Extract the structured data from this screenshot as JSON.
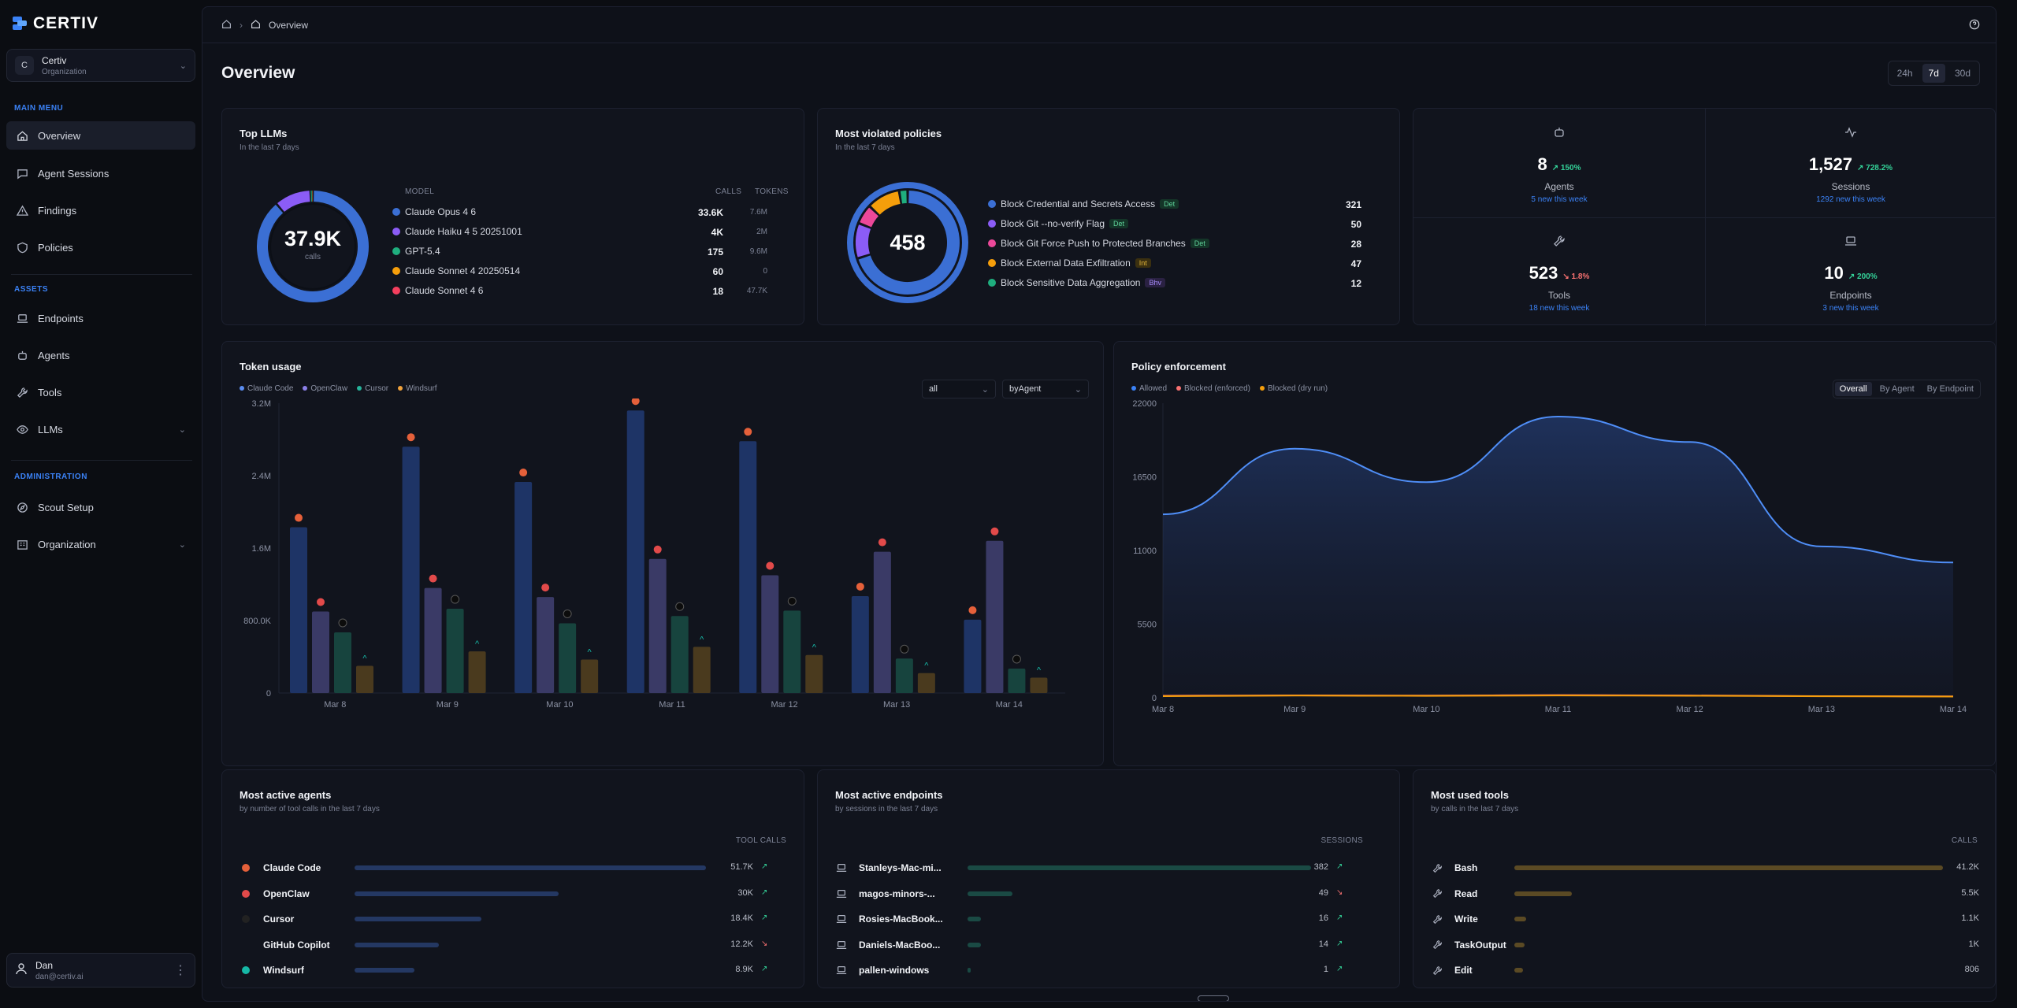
{
  "brand": {
    "name": "CERTIV"
  },
  "org": {
    "avatar": "C",
    "name": "Certiv",
    "type": "Organization"
  },
  "sidebar": {
    "main_menu_label": "MAIN MENU",
    "assets_label": "ASSETS",
    "admin_label": "ADMINISTRATION",
    "items": [
      {
        "label": "Overview",
        "icon": "home-icon"
      },
      {
        "label": "Agent Sessions",
        "icon": "message-icon"
      },
      {
        "label": "Findings",
        "icon": "warning-icon"
      },
      {
        "label": "Policies",
        "icon": "shield-icon"
      },
      {
        "label": "Endpoints",
        "icon": "laptop-icon"
      },
      {
        "label": "Agents",
        "icon": "robot-icon"
      },
      {
        "label": "Tools",
        "icon": "wrench-icon"
      },
      {
        "label": "LLMs",
        "icon": "eye-icon"
      },
      {
        "label": "Scout Setup",
        "icon": "compass-icon"
      },
      {
        "label": "Organization",
        "icon": "building-icon"
      }
    ]
  },
  "user": {
    "name": "Dan",
    "email": "dan@certiv.ai"
  },
  "breadcrumb": {
    "current": "Overview"
  },
  "page": {
    "title": "Overview"
  },
  "range": {
    "options": [
      "24h",
      "7d",
      "30d"
    ],
    "selected": "7d"
  },
  "top_llms": {
    "title": "Top LLMs",
    "subtitle": "In the last 7 days",
    "center_value": "37.9K",
    "center_label": "calls",
    "headers": {
      "model": "MODEL",
      "calls": "CALLS",
      "tokens": "TOKENS"
    },
    "rows": [
      {
        "name": "Claude Opus 4 6",
        "calls": "33.6K",
        "tokens": "7.6M",
        "color": "#3b6fd4",
        "value": 33600
      },
      {
        "name": "Claude Haiku 4 5 20251001",
        "calls": "4K",
        "tokens": "2M",
        "color": "#8b5cf6",
        "value": 4000
      },
      {
        "name": "GPT-5.4",
        "calls": "175",
        "tokens": "9.6M",
        "color": "#1fae7e",
        "value": 175
      },
      {
        "name": "Claude Sonnet 4 20250514",
        "calls": "60",
        "tokens": "0",
        "color": "#f59e0b",
        "value": 60
      },
      {
        "name": "Claude Sonnet 4 6",
        "calls": "18",
        "tokens": "47.7K",
        "color": "#f43f5e",
        "value": 18
      }
    ]
  },
  "violated": {
    "title": "Most violated policies",
    "subtitle": "In the last 7 days",
    "center_value": "458",
    "rows": [
      {
        "name": "Block Credential and Secrets Access",
        "badge": "Det",
        "badge_class": "b-det",
        "count": "321",
        "color": "#3b6fd4",
        "value": 321
      },
      {
        "name": "Block Git --no-verify Flag",
        "badge": "Det",
        "badge_class": "b-det",
        "count": "50",
        "color": "#8b5cf6",
        "value": 50
      },
      {
        "name": "Block Git Force Push to Protected Branches",
        "badge": "Det",
        "badge_class": "b-det",
        "count": "28",
        "color": "#ec4899",
        "value": 28
      },
      {
        "name": "Block External Data Exfiltration",
        "badge": "Int",
        "badge_class": "b-int",
        "count": "47",
        "color": "#f59e0b",
        "value": 47
      },
      {
        "name": "Block Sensitive Data Aggregation",
        "badge": "Bhv",
        "badge_class": "b-bhv",
        "count": "12",
        "color": "#1fae7e",
        "value": 12
      }
    ]
  },
  "stats": [
    {
      "icon": "robot-icon",
      "value": "8",
      "delta": "150%",
      "dir": "up",
      "label": "Agents",
      "note": "5 new this week"
    },
    {
      "icon": "activity-icon",
      "value": "1,527",
      "delta": "728.2%",
      "dir": "up",
      "label": "Sessions",
      "note": "1292 new this week"
    },
    {
      "icon": "wrench-icon",
      "value": "523",
      "delta": "1.8%",
      "dir": "down",
      "label": "Tools",
      "note": "18 new this week"
    },
    {
      "icon": "laptop-icon",
      "value": "10",
      "delta": "200%",
      "dir": "up",
      "label": "Endpoints",
      "note": "3 new this week"
    }
  ],
  "token_usage": {
    "title": "Token usage",
    "legend": [
      "Claude Code",
      "OpenClaw",
      "Cursor",
      "Windsurf"
    ],
    "filter_value": "all",
    "group_value": "byAgent"
  },
  "policy_enforcement": {
    "title": "Policy enforcement",
    "legend": [
      "Allowed",
      "Blocked (enforced)",
      "Blocked (dry run)"
    ],
    "tabs": [
      "Overall",
      "By Agent",
      "By Endpoint"
    ],
    "selected_tab": "Overall"
  },
  "chart_data": [
    {
      "type": "bar",
      "title": "Token usage",
      "categories": [
        "Mar 8",
        "Mar 9",
        "Mar 10",
        "Mar 11",
        "Mar 12",
        "Mar 13",
        "Mar 14"
      ],
      "ylim": [
        0,
        3200000
      ],
      "yticks": [
        "0",
        "800.0K",
        "1.6M",
        "2.4M",
        "3.2M"
      ],
      "series": [
        {
          "name": "Claude Code",
          "color": "#1e3466",
          "values": [
            1830000,
            2720000,
            2330000,
            3120000,
            2780000,
            1070000,
            810000
          ]
        },
        {
          "name": "OpenClaw",
          "color": "#3a3a66",
          "values": [
            900000,
            1160000,
            1060000,
            1480000,
            1300000,
            1560000,
            1680000
          ]
        },
        {
          "name": "Cursor",
          "color": "#17443e",
          "values": [
            670000,
            930000,
            770000,
            850000,
            910000,
            380000,
            270000
          ]
        },
        {
          "name": "Windsurf",
          "color": "#4a3a1e",
          "values": [
            300000,
            460000,
            370000,
            510000,
            420000,
            220000,
            170000
          ]
        }
      ]
    },
    {
      "type": "area",
      "title": "Policy enforcement",
      "x": [
        "Mar 8",
        "Mar 9",
        "Mar 10",
        "Mar 11",
        "Mar 12",
        "Mar 13",
        "Mar 14"
      ],
      "ylim": [
        0,
        22000
      ],
      "yticks": [
        "0",
        "5500",
        "11000",
        "16500",
        "22000"
      ],
      "series": [
        {
          "name": "Allowed",
          "color": "#3b82f6",
          "values": [
            13700,
            18600,
            16100,
            21000,
            19100,
            11300,
            10100
          ]
        },
        {
          "name": "Blocked (enforced)",
          "color": "#f87171",
          "values": [
            150,
            180,
            160,
            200,
            170,
            120,
            100
          ]
        },
        {
          "name": "Blocked (dry run)",
          "color": "#f59e0b",
          "values": [
            120,
            160,
            140,
            170,
            150,
            110,
            90
          ]
        }
      ]
    }
  ],
  "active_agents": {
    "title": "Most active agents",
    "subtitle": "by number of tool calls in the last 7 days",
    "header": "TOOL CALLS",
    "rows": [
      {
        "name": "Claude Code",
        "value": "51.7K",
        "frac": 1.0,
        "dir": "up",
        "color": "#253a66",
        "icon": "#e5603a"
      },
      {
        "name": "OpenClaw",
        "value": "30K",
        "frac": 0.58,
        "dir": "up",
        "color": "#253a66",
        "icon": "#e24a4a"
      },
      {
        "name": "Cursor",
        "value": "18.4K",
        "frac": 0.36,
        "dir": "up",
        "color": "#253a66",
        "icon": "#222"
      },
      {
        "name": "GitHub Copilot",
        "value": "12.2K",
        "frac": 0.24,
        "dir": "down",
        "color": "#253a66",
        "icon": ""
      },
      {
        "name": "Windsurf",
        "value": "8.9K",
        "frac": 0.17,
        "dir": "up",
        "color": "#253a66",
        "icon": "#16b8a6"
      }
    ]
  },
  "active_endpoints": {
    "title": "Most active endpoints",
    "subtitle": "by sessions in the last 7 days",
    "header": "SESSIONS",
    "rows": [
      {
        "name": "Stanleys-Mac-mi...",
        "value": "382",
        "frac": 1.0,
        "dir": "up"
      },
      {
        "name": "magos-minors-...",
        "value": "49",
        "frac": 0.13,
        "dir": "down"
      },
      {
        "name": "Rosies-MacBook...",
        "value": "16",
        "frac": 0.04,
        "dir": "up"
      },
      {
        "name": "Daniels-MacBoo...",
        "value": "14",
        "frac": 0.04,
        "dir": "up"
      },
      {
        "name": "pallen-windows",
        "value": "1",
        "frac": 0.005,
        "dir": "up"
      }
    ]
  },
  "used_tools": {
    "title": "Most used tools",
    "subtitle": "by calls in the last 7 days",
    "header": "CALLS",
    "rows": [
      {
        "name": "Bash",
        "value": "41.2K",
        "frac": 1.0
      },
      {
        "name": "Read",
        "value": "5.5K",
        "frac": 0.134
      },
      {
        "name": "Write",
        "value": "1.1K",
        "frac": 0.027
      },
      {
        "name": "TaskOutput",
        "value": "1K",
        "frac": 0.024
      },
      {
        "name": "Edit",
        "value": "806",
        "frac": 0.02
      }
    ]
  }
}
